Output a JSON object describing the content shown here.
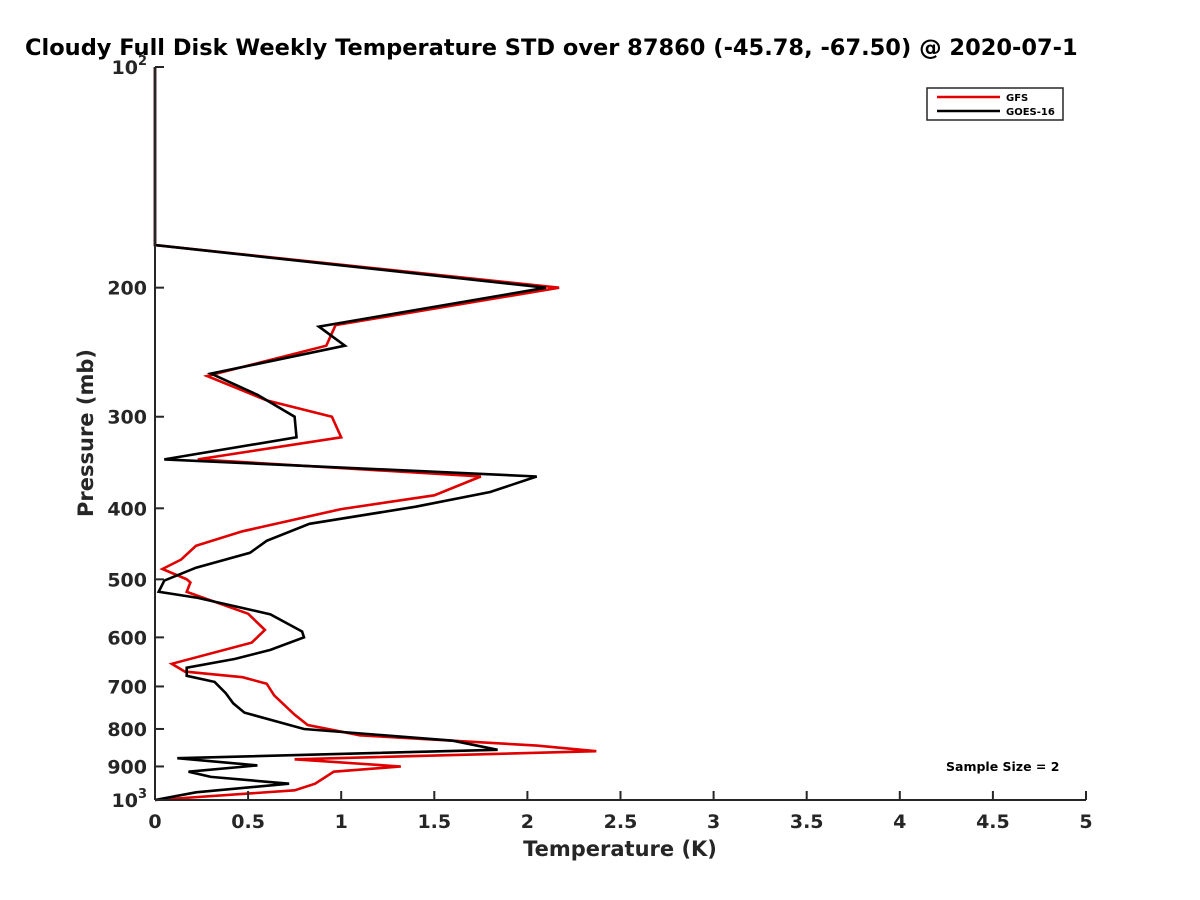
{
  "chart_data": {
    "type": "line",
    "title": "Cloudy Full Disk Weekly Temperature STD over 87860 (-45.78, -67.50) @ 2020-07-1",
    "xlabel": "Temperature (K)",
    "ylabel": "Pressure (mb)",
    "xlim": [
      0,
      5
    ],
    "ylim": [
      1000,
      100
    ],
    "y_scale": "log",
    "y_reversed": true,
    "grid": false,
    "legend_position": "top-right",
    "x_ticks": [
      0,
      0.5,
      1,
      1.5,
      2,
      2.5,
      3,
      3.5,
      4,
      4.5,
      5
    ],
    "x_tick_labels": [
      "0",
      "0.5",
      "1",
      "1.5",
      "2",
      "2.5",
      "3",
      "3.5",
      "4",
      "4.5",
      "5"
    ],
    "y_ticks": [
      100,
      200,
      300,
      400,
      500,
      600,
      700,
      800,
      900,
      1000
    ],
    "y_tick_labels": [
      {
        "base": "10",
        "exp": "2"
      },
      {
        "base": "200",
        "exp": ""
      },
      {
        "base": "300",
        "exp": ""
      },
      {
        "base": "400",
        "exp": ""
      },
      {
        "base": "500",
        "exp": ""
      },
      {
        "base": "600",
        "exp": ""
      },
      {
        "base": "700",
        "exp": ""
      },
      {
        "base": "800",
        "exp": ""
      },
      {
        "base": "900",
        "exp": ""
      },
      {
        "base": "10",
        "exp": "3"
      }
    ],
    "series": [
      {
        "name": "GFS",
        "color": "#e00000",
        "points": [
          [
            0,
            100
          ],
          [
            0,
            175
          ],
          [
            2.17,
            200
          ],
          [
            0.97,
            225
          ],
          [
            0.92,
            240
          ],
          [
            0.28,
            264
          ],
          [
            0.6,
            285
          ],
          [
            0.95,
            300
          ],
          [
            1.0,
            320
          ],
          [
            0.23,
            343
          ],
          [
            1.75,
            362
          ],
          [
            1.5,
            384
          ],
          [
            1.0,
            401
          ],
          [
            0.47,
            430
          ],
          [
            0.22,
            450
          ],
          [
            0.14,
            470
          ],
          [
            0.04,
            484
          ],
          [
            0.17,
            500
          ],
          [
            0.19,
            505
          ],
          [
            0.17,
            520
          ],
          [
            0.5,
            557
          ],
          [
            0.59,
            586
          ],
          [
            0.52,
            610
          ],
          [
            0.09,
            652
          ],
          [
            0.16,
            668
          ],
          [
            0.47,
            680
          ],
          [
            0.6,
            694
          ],
          [
            0.64,
            720
          ],
          [
            0.75,
            765
          ],
          [
            0.82,
            790
          ],
          [
            1.1,
            816
          ],
          [
            2.05,
            843
          ],
          [
            2.37,
            858
          ],
          [
            0.75,
            880
          ],
          [
            1.32,
            900
          ],
          [
            0.96,
            915
          ],
          [
            0.86,
            950
          ],
          [
            0.75,
            970
          ],
          [
            0,
            1000
          ]
        ]
      },
      {
        "name": "GOES-16",
        "color": "#000000",
        "points": [
          [
            0,
            100
          ],
          [
            0,
            175
          ],
          [
            2.1,
            200
          ],
          [
            0.88,
            226
          ],
          [
            1.02,
            240
          ],
          [
            0.3,
            262
          ],
          [
            0.55,
            280
          ],
          [
            0.75,
            300
          ],
          [
            0.76,
            320
          ],
          [
            0.05,
            343
          ],
          [
            2.05,
            362
          ],
          [
            1.8,
            380
          ],
          [
            1.4,
            398
          ],
          [
            0.83,
            420
          ],
          [
            0.6,
            443
          ],
          [
            0.51,
            460
          ],
          [
            0.22,
            482
          ],
          [
            0.05,
            502
          ],
          [
            0.02,
            520
          ],
          [
            0.23,
            530
          ],
          [
            0.62,
            558
          ],
          [
            0.79,
            589
          ],
          [
            0.8,
            600
          ],
          [
            0.62,
            624
          ],
          [
            0.43,
            642
          ],
          [
            0.17,
            660
          ],
          [
            0.17,
            677
          ],
          [
            0.32,
            690
          ],
          [
            0.38,
            715
          ],
          [
            0.42,
            738
          ],
          [
            0.48,
            760
          ],
          [
            0.8,
            800
          ],
          [
            1.6,
            830
          ],
          [
            1.84,
            854
          ],
          [
            0.12,
            877
          ],
          [
            0.55,
            897
          ],
          [
            0.18,
            915
          ],
          [
            0.3,
            930
          ],
          [
            0.72,
            950
          ],
          [
            0.22,
            976
          ],
          [
            0,
            1000
          ]
        ]
      }
    ],
    "annotation": "Sample Size = 2"
  }
}
